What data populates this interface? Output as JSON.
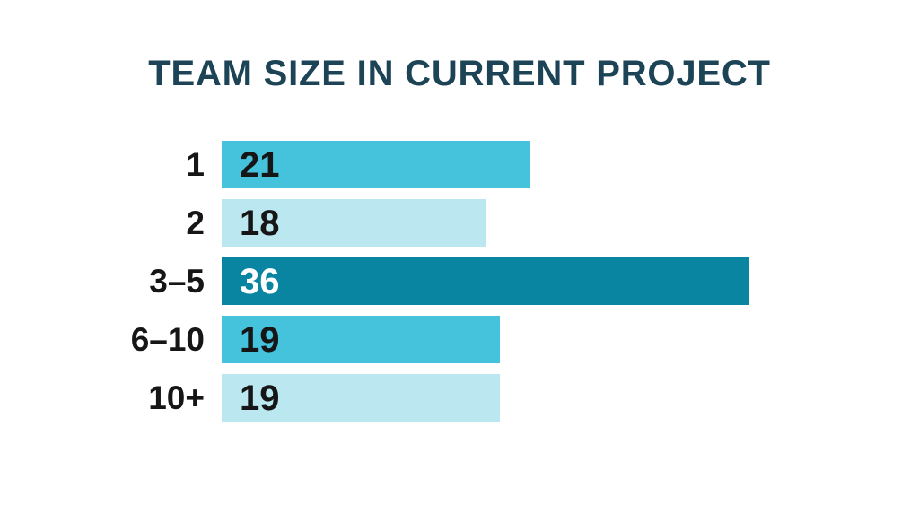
{
  "chart_data": {
    "type": "bar",
    "orientation": "horizontal",
    "title": "TEAM SIZE IN CURRENT PROJECT",
    "categories": [
      "1",
      "2",
      "3–5",
      "6–10",
      "10+"
    ],
    "values": [
      21,
      18,
      36,
      19,
      19
    ],
    "xlim": [
      0,
      36
    ],
    "grid": false,
    "legend": false,
    "value_labels_inside_bars": true,
    "bar_colors": [
      "#45c2dc",
      "#bae7f0",
      "#0985a1",
      "#45c2dc",
      "#bae7f0"
    ],
    "value_label_colors": [
      "#161616",
      "#161616",
      "#ffffff",
      "#161616",
      "#161616"
    ]
  },
  "colors": {
    "background": "#ffffff",
    "title_text": "#1c4356",
    "category_text": "#161616"
  }
}
